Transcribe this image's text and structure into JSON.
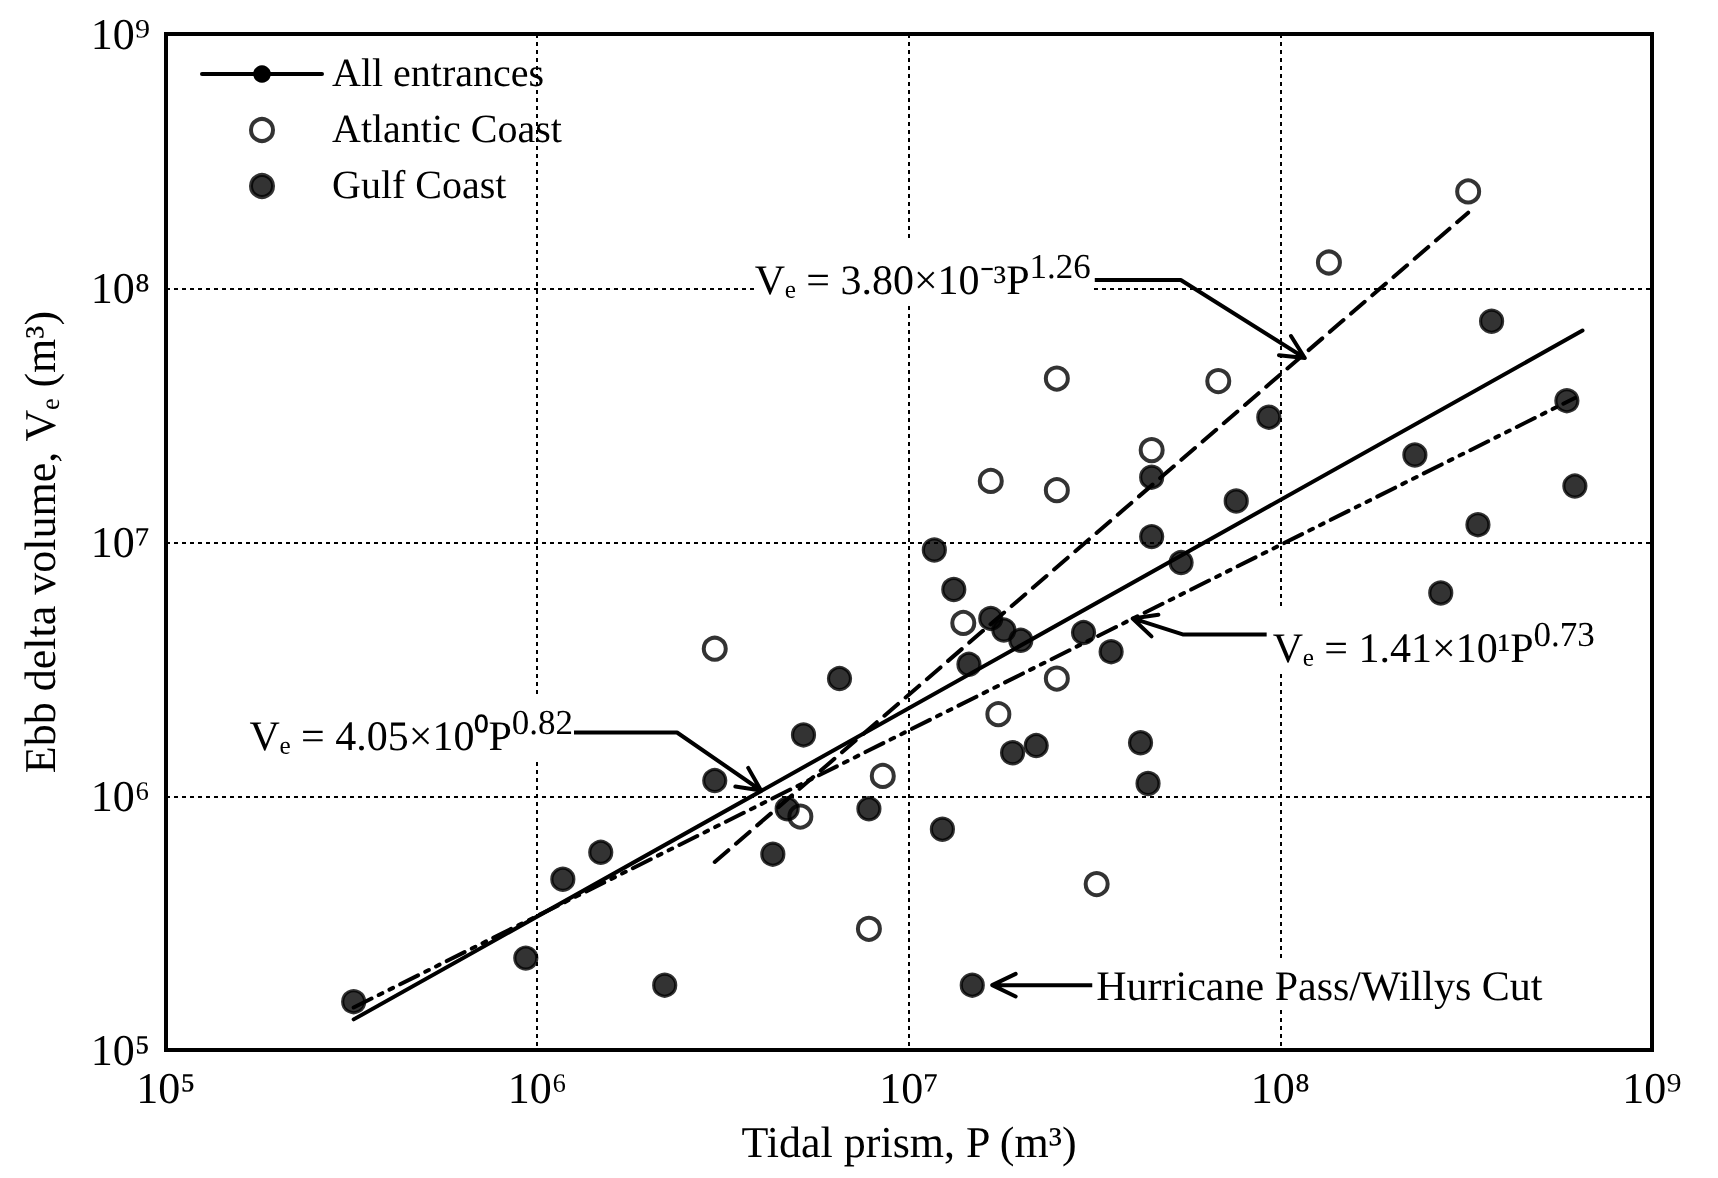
{
  "chart_data": {
    "type": "scatter",
    "xlabel": "Tidal prism, P (m³)",
    "ylabel": "Ebb delta volume, Vₑ (m³)",
    "log": "xy",
    "xlim": [
      100000,
      1000000000
    ],
    "ylim": [
      100000,
      1000000000
    ],
    "xticks": [
      {
        "value": 100000,
        "label": "10⁵"
      },
      {
        "value": 1000000,
        "label": "10⁶"
      },
      {
        "value": 10000000,
        "label": "10⁷"
      },
      {
        "value": 100000000,
        "label": "10⁸"
      },
      {
        "value": 1000000000,
        "label": "10⁹"
      }
    ],
    "yticks": [
      {
        "value": 100000,
        "label": "10⁵"
      },
      {
        "value": 1000000,
        "label": "10⁶"
      },
      {
        "value": 10000000,
        "label": "10⁷"
      },
      {
        "value": 100000000,
        "label": "10⁸"
      },
      {
        "value": 1000000000,
        "label": "10⁹"
      }
    ],
    "grid": true,
    "legend": "top left",
    "series": [
      {
        "name": "All entrances",
        "type": "line",
        "color": "#000000",
        "line_style": "solid",
        "x": [
          320000,
          650000000
        ],
        "values": [
          132000,
          68000000
        ]
      },
      {
        "type": "line",
        "color": "#000000",
        "line_style": "dashed",
        "x": [
          3000000,
          320000000
        ],
        "values": [
          550000,
          198000000
        ]
      },
      {
        "type": "line",
        "color": "#000000",
        "line_style": "dashdot",
        "x": [
          320000,
          620000000
        ],
        "values": [
          147000,
          36900000
        ]
      },
      {
        "name": "Atlantic Coast",
        "color": "#000000",
        "marker": "circle_open",
        "x": [
          320000000,
          135000000,
          25000000,
          68000000,
          45000000,
          16600000,
          25000000,
          14000000,
          25000000,
          17400000,
          8500000,
          5100000,
          32000000,
          7800000,
          3000000
        ],
        "values": [
          240000000,
          126000000,
          44000000,
          43000000,
          23000000,
          17400000,
          16000000,
          4800000,
          2900000,
          2100000,
          1200000,
          830000,
          450000,
          300000,
          3800000
        ]
      },
      {
        "name": "Gulf Coast",
        "color": "#000000",
        "marker": "circle",
        "x": [
          370000000,
          93000000,
          590000000,
          230000000,
          620000000,
          340000000,
          270000000,
          76000000,
          45000000,
          45000000,
          54000000,
          11700000,
          13200000,
          16600000,
          18000000,
          20000000,
          14500000,
          29500000,
          35000000,
          6500000,
          5200000,
          19000000,
          22000000,
          42000000,
          44000000,
          4700000,
          7800000,
          4300000,
          12300000,
          3000000,
          1480000,
          1170000,
          930000,
          320000,
          2200000,
          14800000
        ],
        "values": [
          74000000,
          31000000,
          36000000,
          22000000,
          16600000,
          11700000,
          6300000,
          14500000,
          18000000,
          10500000,
          8300000,
          9300000,
          6500000,
          5000000,
          4500000,
          4100000,
          3300000,
          4400000,
          3700000,
          2900000,
          1740000,
          1480000,
          1580000,
          1620000,
          1120000,
          890000,
          890000,
          590000,
          740000,
          1150000,
          600000,
          470000,
          230000,
          155000,
          180000,
          180000
        ]
      }
    ],
    "annotations": [
      {
        "text": "Vₑ = 3.80×10⁻³P$^{1.26}$",
        "x": 112000000,
        "y": 53000000
      },
      {
        "text": "Vₑ = 4.05×10⁰P$^{0.82}$",
        "x": 4200000,
        "y": 1090000
      },
      {
        "text": "Vₑ = 1.41×10¹P$^{0.73}$",
        "x": 40000000,
        "y": 5000000
      },
      {
        "text": "Hurricane Pass/Willys Cut",
        "x": 14800000,
        "y": 180000
      }
    ]
  }
}
